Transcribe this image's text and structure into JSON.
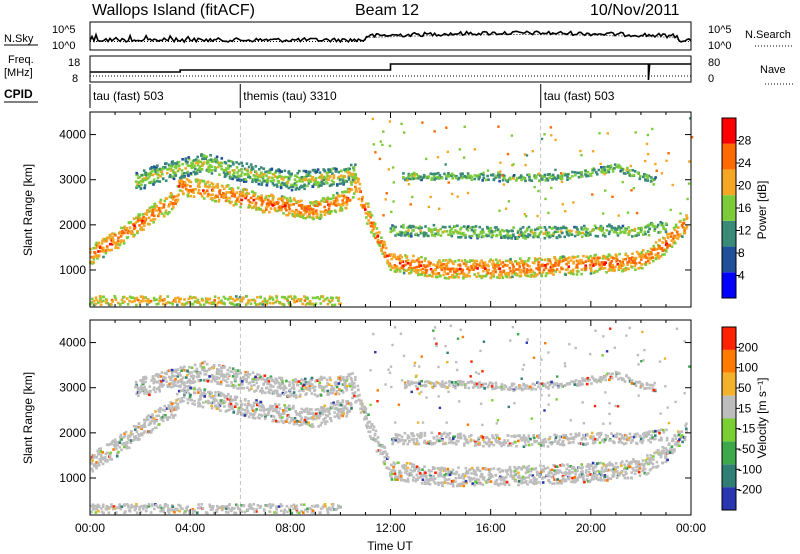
{
  "header": {
    "station": "Wallops Island (fitACF)",
    "beam": "Beam 12",
    "date": "10/Nov/2011"
  },
  "noise_panel": {
    "left_label": "N.Sky",
    "right_label": "N.Search",
    "left_ticks": [
      "10^5",
      "10^0"
    ],
    "right_ticks": [
      "10^5",
      "10^0"
    ]
  },
  "freq_panel": {
    "left_label_line1": "Freq.",
    "left_label_line2": "[MHz]",
    "right_label": "Nave",
    "left_ticks": [
      "18",
      "8"
    ],
    "right_ticks": [
      "80",
      "0"
    ]
  },
  "cpid": {
    "label": "CPID",
    "segments": [
      {
        "name": "tau (fast) 503",
        "start_hour": 0
      },
      {
        "name": "themis (tau) 3310",
        "start_hour": 6
      },
      {
        "name": "tau (fast) 503",
        "start_hour": 18
      }
    ]
  },
  "chart_data": [
    {
      "type": "heatmap",
      "name": "power",
      "xlabel": "",
      "ylabel": "Slant Range [km]",
      "xlim": [
        0,
        24
      ],
      "ylim": [
        180,
        4500
      ],
      "yticks": [
        1000,
        2000,
        3000,
        4000
      ],
      "colorbar": {
        "label": "Power [dB]",
        "ticks": [
          "4",
          "8",
          "12",
          "16",
          "20",
          "24",
          "28"
        ],
        "range": [
          0,
          30
        ],
        "colors": [
          "#0000ff",
          "#1f4f9a",
          "#3a8a78",
          "#7ccc3a",
          "#f5a623",
          "#ff6a00",
          "#ff0000"
        ]
      },
      "echo_bands": [
        {
          "name": "main",
          "points": [
            [
              0.0,
              1350
            ],
            [
              1.0,
              1700
            ],
            [
              2.0,
              2100
            ],
            [
              3.4,
              2600
            ],
            [
              3.5,
              2900
            ],
            [
              5.0,
              2750
            ],
            [
              7.0,
              2500
            ],
            [
              9.0,
              2350
            ],
            [
              10.2,
              2600
            ],
            [
              10.6,
              2950
            ],
            [
              11.0,
              2300
            ],
            [
              11.5,
              1700
            ],
            [
              12.0,
              1200
            ],
            [
              14.0,
              1050
            ],
            [
              16.0,
              1050
            ],
            [
              18.0,
              1100
            ],
            [
              20.0,
              1150
            ],
            [
              22.0,
              1250
            ],
            [
              23.0,
              1600
            ],
            [
              23.8,
              2100
            ]
          ],
          "width_km": 320,
          "level_db": 26
        },
        {
          "name": "upper",
          "points": [
            [
              1.8,
              3000
            ],
            [
              3.4,
              3250
            ],
            [
              4.5,
              3400
            ],
            [
              6.0,
              3200
            ],
            [
              8.0,
              3000
            ],
            [
              10.0,
              3100
            ],
            [
              10.6,
              3200
            ]
          ],
          "width_km": 320,
          "level_db": 18
        },
        {
          "name": "mid",
          "points": [
            [
              12.0,
              1900
            ],
            [
              14.0,
              1900
            ],
            [
              16.0,
              1850
            ],
            [
              18.0,
              1850
            ],
            [
              20.0,
              1900
            ],
            [
              22.0,
              1900
            ],
            [
              23.0,
              2000
            ]
          ],
          "width_km": 200,
          "level_db": 16
        },
        {
          "name": "high",
          "points": [
            [
              12.5,
              3100
            ],
            [
              15.0,
              3100
            ],
            [
              17.0,
              3050
            ],
            [
              19.0,
              3100
            ],
            [
              21.0,
              3300
            ],
            [
              22.5,
              3000
            ]
          ],
          "width_km": 120,
          "level_db": 14
        },
        {
          "name": "ground",
          "points": [
            [
              0.0,
              350
            ],
            [
              5.0,
              350
            ],
            [
              10.0,
              350
            ]
          ],
          "width_km": 150,
          "level_db": 20
        }
      ]
    },
    {
      "type": "heatmap",
      "name": "velocity",
      "xlabel": "Time UT",
      "ylabel": "Slant Range [km]",
      "xlim": [
        0,
        24
      ],
      "ylim": [
        180,
        4500
      ],
      "yticks": [
        1000,
        2000,
        3000,
        4000
      ],
      "xticks": [
        "00:00",
        "04:00",
        "08:00",
        "12:00",
        "16:00",
        "20:00",
        "00:00"
      ],
      "colorbar": {
        "label": "Velocity [m s⁻¹]",
        "ticks": [
          "200",
          "100",
          "50",
          "15",
          "-15",
          "-50",
          "-100",
          "-200"
        ],
        "range": [
          -250,
          250
        ],
        "colors": [
          "#2a36b0",
          "#2f7f74",
          "#3da84a",
          "#79cf34",
          "#bdbdbd",
          "#f2b22b",
          "#ff7a00",
          "#ff2200"
        ]
      },
      "echo_bands": [
        {
          "name": "main",
          "points": [
            [
              0.0,
              1350
            ],
            [
              1.0,
              1700
            ],
            [
              2.0,
              2100
            ],
            [
              3.4,
              2600
            ],
            [
              3.5,
              2900
            ],
            [
              5.0,
              2750
            ],
            [
              7.0,
              2500
            ],
            [
              9.0,
              2350
            ],
            [
              10.2,
              2600
            ],
            [
              10.6,
              2950
            ],
            [
              11.0,
              2300
            ],
            [
              11.5,
              1700
            ],
            [
              12.0,
              1200
            ],
            [
              14.0,
              1050
            ],
            [
              16.0,
              1050
            ],
            [
              18.0,
              1100
            ],
            [
              20.0,
              1150
            ],
            [
              22.0,
              1250
            ],
            [
              23.0,
              1600
            ],
            [
              23.8,
              2100
            ]
          ],
          "width_km": 320,
          "velocity": 0
        },
        {
          "name": "upper",
          "points": [
            [
              1.8,
              3000
            ],
            [
              3.4,
              3250
            ],
            [
              4.5,
              3400
            ],
            [
              6.0,
              3200
            ],
            [
              8.0,
              3000
            ],
            [
              10.0,
              3100
            ],
            [
              10.6,
              3200
            ]
          ],
          "width_km": 320,
          "velocity": 0
        },
        {
          "name": "mid",
          "points": [
            [
              12.0,
              1900
            ],
            [
              14.0,
              1900
            ],
            [
              16.0,
              1850
            ],
            [
              18.0,
              1850
            ],
            [
              20.0,
              1900
            ],
            [
              22.0,
              1900
            ],
            [
              23.0,
              2000
            ]
          ],
          "width_km": 200,
          "velocity": 0
        },
        {
          "name": "high",
          "points": [
            [
              12.5,
              3100
            ],
            [
              15.0,
              3100
            ],
            [
              17.0,
              3050
            ],
            [
              19.0,
              3100
            ],
            [
              21.0,
              3300
            ],
            [
              22.5,
              3000
            ]
          ],
          "width_km": 120,
          "velocity": 0
        },
        {
          "name": "ground",
          "points": [
            [
              0.0,
              350
            ],
            [
              5.0,
              350
            ],
            [
              10.0,
              350
            ]
          ],
          "width_km": 150,
          "velocity": 0
        }
      ]
    }
  ]
}
